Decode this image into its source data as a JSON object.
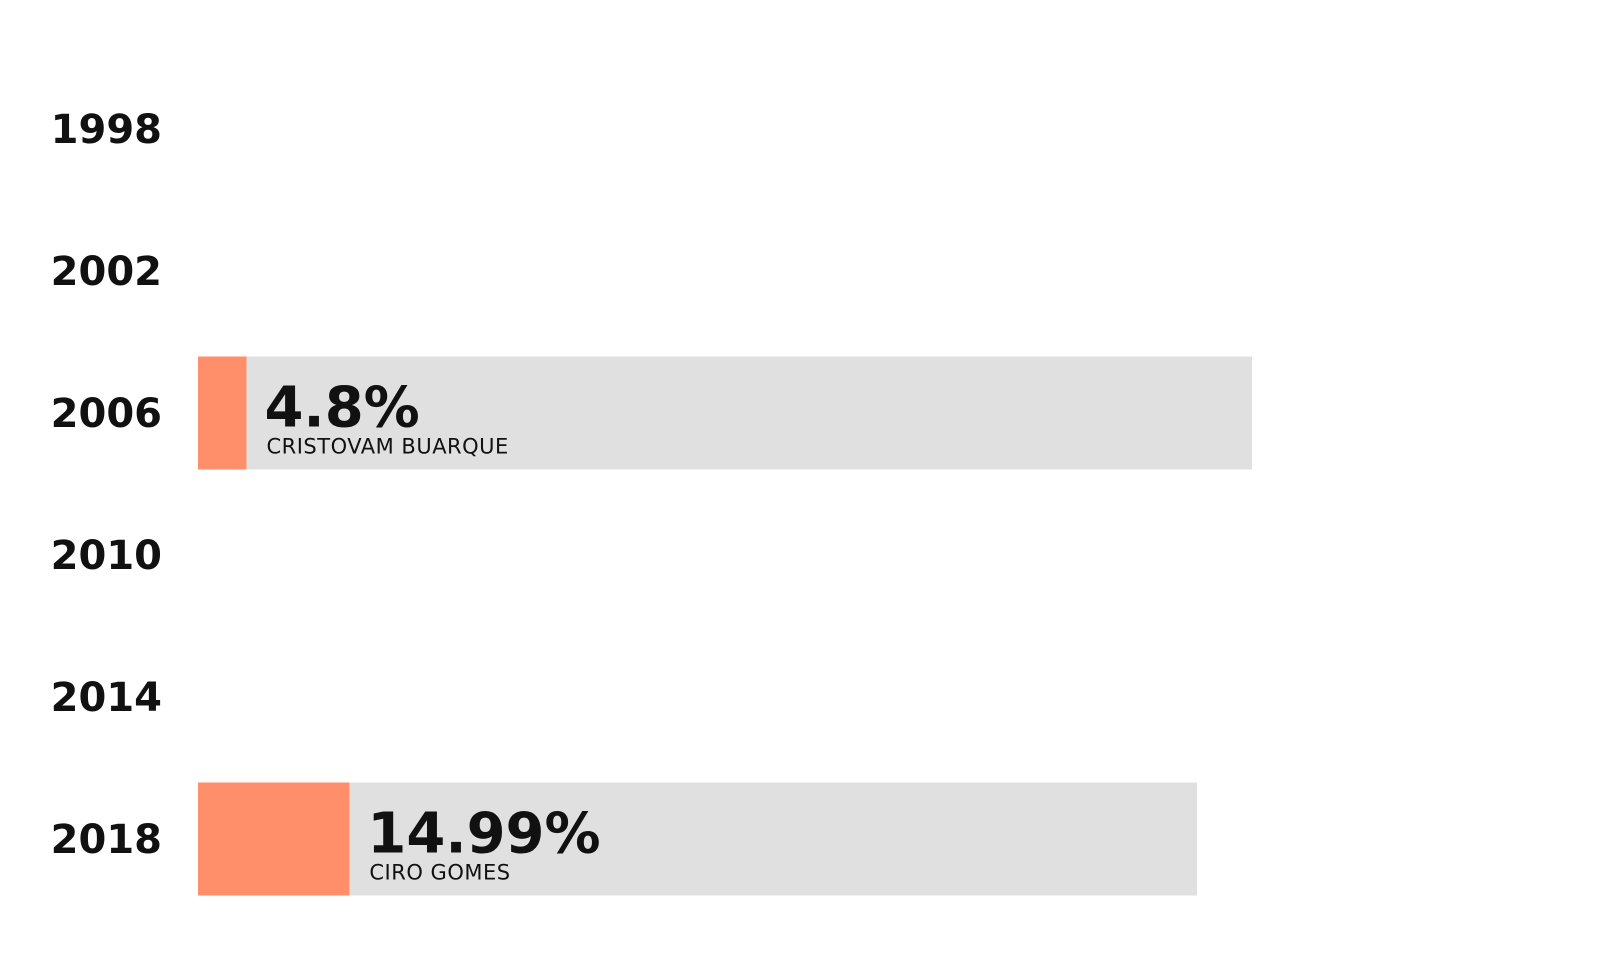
{
  "chart_data": {
    "type": "bar",
    "orientation": "horizontal",
    "title": "",
    "xlabel": "",
    "ylabel": "",
    "categories": [
      "1998",
      "2002",
      "2006",
      "2010",
      "2014",
      "2018"
    ],
    "values": [
      null,
      null,
      4.8,
      null,
      null,
      14.99
    ],
    "value_labels": [
      "",
      "",
      "4.8%",
      "",
      "",
      "14.99%"
    ],
    "candidates": [
      "",
      "",
      "CRISTOVAM BUARQUE",
      "",
      "",
      "CIRO GOMES"
    ],
    "xlim": [
      0,
      100
    ],
    "grid": false,
    "legend": "none",
    "colors": {
      "bar": "#ff8f6b",
      "track": "#e0e0e0",
      "text": "#111111",
      "background": "#ffffff"
    }
  }
}
